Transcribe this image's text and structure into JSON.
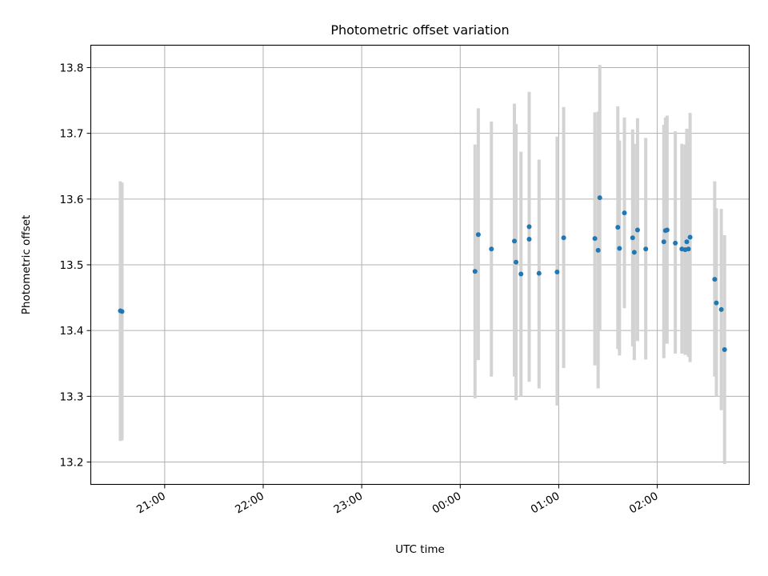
{
  "chart_data": {
    "type": "scatter",
    "title": "Photometric offset variation",
    "xlabel": "UTC time",
    "ylabel": "Photometric offset",
    "grid": true,
    "legend": "none",
    "xlim": [
      "20:15",
      "02:56"
    ],
    "ylim": [
      13.166,
      13.834
    ],
    "x_ticks": [
      "21:00",
      "22:00",
      "23:00",
      "00:00",
      "01:00",
      "02:00"
    ],
    "y_ticks": [
      "13.2",
      "13.3",
      "13.4",
      "13.5",
      "13.6",
      "13.7",
      "13.8"
    ],
    "colors": {
      "marker": "#1f77b4",
      "errorbar": "#d3d3d3",
      "grid": "#b0b0b0"
    },
    "series": [
      {
        "points": [
          {
            "t": "20:33",
            "y": 13.43,
            "lo": 13.232,
            "hi": 13.627
          },
          {
            "t": "20:34",
            "y": 13.429,
            "lo": 13.233,
            "hi": 13.625
          },
          {
            "t": "00:09",
            "y": 13.49,
            "lo": 13.297,
            "hi": 13.683
          },
          {
            "t": "00:11",
            "y": 13.546,
            "lo": 13.355,
            "hi": 13.738
          },
          {
            "t": "00:19",
            "y": 13.524,
            "lo": 13.33,
            "hi": 13.718
          },
          {
            "t": "00:33",
            "y": 13.536,
            "lo": 13.33,
            "hi": 13.745
          },
          {
            "t": "00:34",
            "y": 13.504,
            "lo": 13.294,
            "hi": 13.714
          },
          {
            "t": "00:37",
            "y": 13.486,
            "lo": 13.3,
            "hi": 13.672
          },
          {
            "t": "00:42",
            "y": 13.558,
            "lo": 13.352,
            "hi": 13.763
          },
          {
            "t": "00:42",
            "y": 13.539,
            "lo": 13.322,
            "hi": 13.757
          },
          {
            "t": "00:48",
            "y": 13.487,
            "lo": 13.312,
            "hi": 13.66
          },
          {
            "t": "00:59",
            "y": 13.489,
            "lo": 13.286,
            "hi": 13.695
          },
          {
            "t": "01:03",
            "y": 13.541,
            "lo": 13.343,
            "hi": 13.74
          },
          {
            "t": "01:22",
            "y": 13.54,
            "lo": 13.347,
            "hi": 13.732
          },
          {
            "t": "01:24",
            "y": 13.522,
            "lo": 13.312,
            "hi": 13.733
          },
          {
            "t": "01:25",
            "y": 13.602,
            "lo": 13.4,
            "hi": 13.804
          },
          {
            "t": "01:36",
            "y": 13.557,
            "lo": 13.372,
            "hi": 13.741
          },
          {
            "t": "01:37",
            "y": 13.525,
            "lo": 13.362,
            "hi": 13.689
          },
          {
            "t": "01:40",
            "y": 13.579,
            "lo": 13.434,
            "hi": 13.724
          },
          {
            "t": "01:45",
            "y": 13.541,
            "lo": 13.376,
            "hi": 13.706
          },
          {
            "t": "01:46",
            "y": 13.519,
            "lo": 13.355,
            "hi": 13.684
          },
          {
            "t": "01:48",
            "y": 13.553,
            "lo": 13.384,
            "hi": 13.723
          },
          {
            "t": "01:53",
            "y": 13.524,
            "lo": 13.356,
            "hi": 13.693
          },
          {
            "t": "02:04",
            "y": 13.535,
            "lo": 13.358,
            "hi": 13.713
          },
          {
            "t": "02:05",
            "y": 13.552,
            "lo": 13.38,
            "hi": 13.724
          },
          {
            "t": "02:06",
            "y": 13.553,
            "lo": 13.38,
            "hi": 13.727
          },
          {
            "t": "02:11",
            "y": 13.533,
            "lo": 13.365,
            "hi": 13.703
          },
          {
            "t": "02:15",
            "y": 13.524,
            "lo": 13.365,
            "hi": 13.684
          },
          {
            "t": "02:17",
            "y": 13.523,
            "lo": 13.363,
            "hi": 13.683
          },
          {
            "t": "02:18",
            "y": 13.535,
            "lo": 13.367,
            "hi": 13.707
          },
          {
            "t": "02:19",
            "y": 13.524,
            "lo": 13.36,
            "hi": 13.688
          },
          {
            "t": "02:20",
            "y": 13.542,
            "lo": 13.352,
            "hi": 13.731
          },
          {
            "t": "02:35",
            "y": 13.478,
            "lo": 13.33,
            "hi": 13.627
          },
          {
            "t": "02:36",
            "y": 13.442,
            "lo": 13.3,
            "hi": 13.586
          },
          {
            "t": "02:39",
            "y": 13.432,
            "lo": 13.279,
            "hi": 13.585
          },
          {
            "t": "02:41",
            "y": 13.371,
            "lo": 13.197,
            "hi": 13.545
          }
        ]
      }
    ]
  }
}
